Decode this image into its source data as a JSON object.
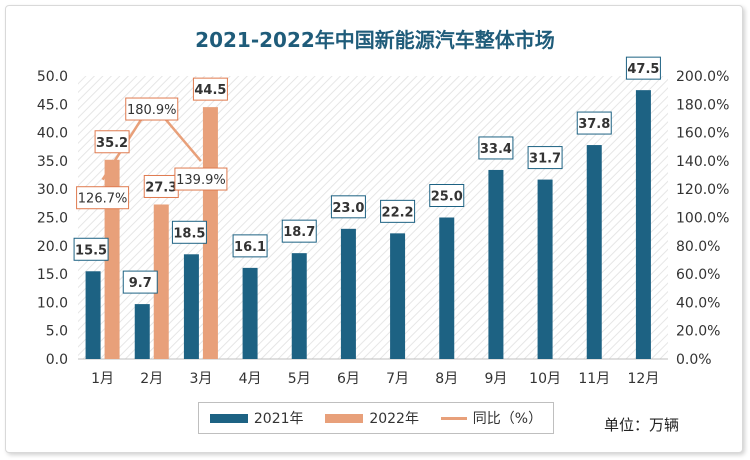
{
  "colors": {
    "s2021": "#1d6283",
    "s2022": "#e8a07a",
    "yoy": "#e8a07a",
    "label_border_2021": "#1d6283",
    "label_border_2022": "#e07b50"
  },
  "legend": {
    "s2021": "2021年",
    "s2022": "2022年",
    "yoy": "同比（%）"
  },
  "unit_label": "单位：万辆",
  "chart_data": {
    "type": "bar",
    "title": "2021-2022年中国新能源汽车整体市场",
    "categories": [
      "1月",
      "2月",
      "3月",
      "4月",
      "5月",
      "6月",
      "7月",
      "8月",
      "9月",
      "10月",
      "11月",
      "12月"
    ],
    "series": [
      {
        "name": "2021年",
        "values": [
          15.5,
          9.7,
          18.5,
          16.1,
          18.7,
          23.0,
          22.2,
          25.0,
          33.4,
          31.7,
          37.8,
          47.5
        ]
      },
      {
        "name": "2022年",
        "values": [
          35.2,
          27.3,
          44.5,
          null,
          null,
          null,
          null,
          null,
          null,
          null,
          null,
          null
        ]
      },
      {
        "name": "同比（%）",
        "type": "line",
        "axis": "right",
        "values": [
          126.7,
          180.9,
          139.9,
          null,
          null,
          null,
          null,
          null,
          null,
          null,
          null,
          null
        ]
      }
    ],
    "ylim": [
      0,
      50
    ],
    "y_ticks": [
      "0.0",
      "5.0",
      "10.0",
      "15.0",
      "20.0",
      "25.0",
      "30.0",
      "35.0",
      "40.0",
      "45.0",
      "50.0"
    ],
    "y2lim": [
      0,
      200
    ],
    "y2_ticks": [
      "0.0%",
      "20.0%",
      "40.0%",
      "60.0%",
      "80.0%",
      "100.0%",
      "120.0%",
      "140.0%",
      "160.0%",
      "180.0%",
      "200.0%"
    ],
    "data_labels_2021": [
      "15.5",
      "9.7",
      "18.5",
      "16.1",
      "18.7",
      "23.0",
      "22.2",
      "25.0",
      "33.4",
      "31.7",
      "37.8",
      "47.5"
    ],
    "data_labels_2022": [
      "35.2",
      "27.3",
      "44.5"
    ],
    "data_labels_yoy": [
      "126.7%",
      "180.9%",
      "139.9%"
    ],
    "grid": false,
    "legend_position": "bottom"
  }
}
